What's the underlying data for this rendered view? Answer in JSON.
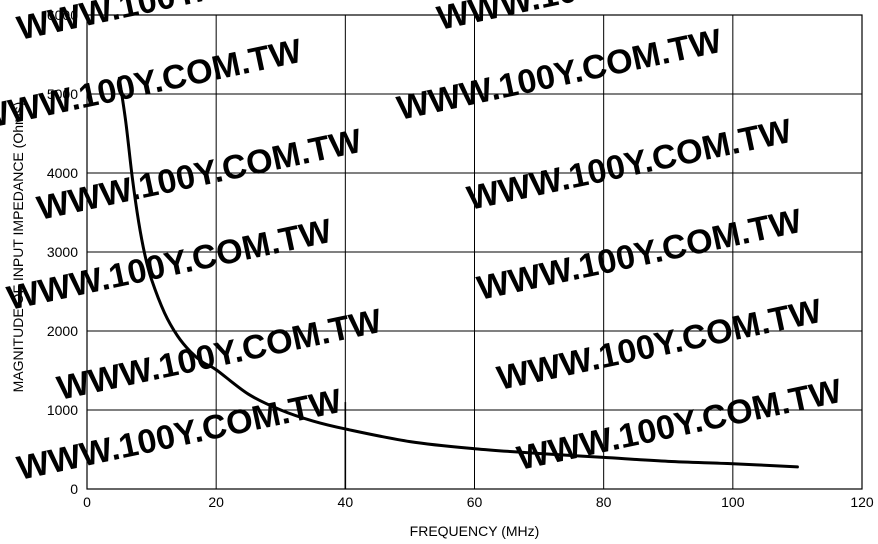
{
  "watermark": "WWW.100Y.COM.TW",
  "chart_data": {
    "type": "line",
    "title": "",
    "xlabel": "FREQUENCY (MHz)",
    "ylabel": "MAGNITUDE OF INPUT IMPEDANCE (Ohms)",
    "xlim": [
      0,
      120
    ],
    "ylim": [
      0,
      6000
    ],
    "xticks": [
      0,
      20,
      40,
      60,
      80,
      100,
      120
    ],
    "yticks": [
      0,
      1000,
      2000,
      3000,
      4000,
      5000,
      6000
    ],
    "xtick_labels": [
      "0",
      "20",
      "40",
      "60",
      "80",
      "100",
      "120"
    ],
    "ytick_labels": [
      "0",
      "1000",
      "2000",
      "3000",
      "4000",
      "5000",
      "6000"
    ],
    "grid": true,
    "series": [
      {
        "x": [
          5,
          6,
          7,
          8,
          9,
          10,
          12,
          14,
          16,
          18,
          20,
          25,
          30,
          35,
          40,
          50,
          60,
          70,
          80,
          90,
          100,
          110
        ],
        "values": [
          5200,
          4650,
          3950,
          3380,
          2950,
          2650,
          2230,
          1940,
          1740,
          1600,
          1510,
          1200,
          1000,
          860,
          760,
          600,
          510,
          450,
          400,
          350,
          320,
          280
        ]
      }
    ],
    "annotations": [
      {
        "type": "vertical-marker",
        "x": 40,
        "y_top": 1100
      }
    ]
  }
}
